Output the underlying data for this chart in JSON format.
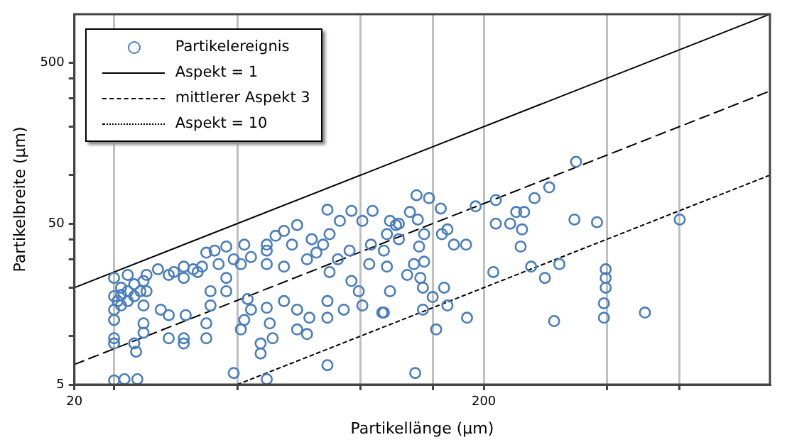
{
  "chart_data": {
    "type": "scatter",
    "xlabel": "Partikellänge (µm)",
    "ylabel": "Partikelbreite (µm)",
    "log": "xy",
    "xlim": [
      20,
      1000
    ],
    "ylim": [
      5,
      1000
    ],
    "xticks": [
      20,
      {
        "value": 25,
        "label": null
      },
      {
        "value": 50,
        "label": null
      },
      {
        "value": 100,
        "label": null
      },
      {
        "value": 150,
        "label": null
      },
      200,
      {
        "value": 400,
        "label": null
      },
      {
        "value": 600,
        "label": null
      }
    ],
    "yticks": [
      5,
      {
        "value": 10,
        "label": null
      },
      {
        "value": 20,
        "label": null
      },
      {
        "value": 30,
        "label": null
      },
      {
        "value": 40,
        "label": null
      },
      50,
      {
        "value": 100,
        "label": null
      },
      {
        "value": 200,
        "label": null
      },
      {
        "value": 300,
        "label": null
      },
      {
        "value": 400,
        "label": null
      },
      500
    ],
    "grid": "x",
    "legend": "top left",
    "marker": "circle",
    "series": [
      {
        "name": "Partikelereignis",
        "color": "#4a7ebb",
        "x": [
          25,
          25,
          25.5,
          26,
          27,
          28,
          25,
          25,
          25,
          25,
          25,
          26.5,
          28.5,
          27,
          29.5,
          30,
          32,
          34,
          30,
          29.5,
          29.5,
          29.5,
          28,
          28.3,
          26,
          27,
          28,
          26,
          29,
          32.5,
          34,
          37.4,
          34,
          37,
          37,
          37,
          37,
          35,
          39,
          41,
          42,
          44,
          47,
          52,
          51,
          47,
          47,
          43,
          43,
          42,
          42,
          40,
          45,
          49,
          54,
          51,
          52,
          54,
          53,
          59,
          65,
          60,
          61,
          57,
          57,
          59,
          49,
          70,
          70,
          74,
          75,
          83,
          83,
          91,
          83,
          59,
          59,
          59,
          65,
          65,
          70,
          68,
          76,
          74,
          81,
          84,
          84,
          94,
          95,
          99,
          101,
          105,
          106,
          113,
          116,
          83,
          95,
          107,
          89,
          101,
          62,
          78,
          88,
          118,
          122,
          124,
          114,
          116,
          118,
          114,
          124,
          130,
          132,
          135,
          138,
          139,
          140,
          142,
          142,
          143,
          143,
          137,
          147,
          150,
          153,
          136,
          157,
          158,
          160,
          163,
          163,
          169,
          181,
          182,
          191,
          211,
          214,
          214,
          232,
          240,
          251,
          248,
          246,
          261,
          266,
          282,
          289,
          297,
          306,
          333,
          336,
          378,
          397,
          397,
          397,
          393,
          393,
          495,
          602
        ],
        "values": [
          23,
          17.7,
          16.5,
          15.5,
          16.5,
          17.7,
          14.6,
          12.6,
          9.7,
          9,
          5.3,
          5.4,
          5.4,
          24,
          22,
          24,
          26,
          24,
          19,
          15.5,
          12,
          10.5,
          9,
          8,
          20,
          19,
          21,
          18,
          19,
          14.6,
          13.5,
          13.5,
          9.7,
          9.7,
          9,
          27,
          23,
          25,
          26,
          27,
          33,
          34,
          36,
          37,
          28,
          23,
          19,
          19,
          15.5,
          12,
          9.7,
          25,
          28,
          30,
          31,
          11,
          12.6,
          14.6,
          17,
          15,
          16.5,
          12,
          9.7,
          9,
          7.8,
          5.4,
          5.9,
          14.6,
          11,
          10.3,
          13,
          16.5,
          13,
          14.6,
          6.6,
          37,
          34,
          28,
          27,
          45,
          49,
          37,
          40,
          30,
          37,
          43,
          25,
          34,
          22,
          19,
          15.5,
          28,
          37,
          14,
          43,
          61,
          60,
          60,
          52,
          52,
          42,
          33,
          30,
          52,
          49,
          40,
          34,
          27,
          19,
          14,
          50,
          24,
          59,
          28,
          53,
          36,
          23,
          20,
          14.6,
          29,
          43,
          75,
          72,
          17.5,
          11,
          5.9,
          62,
          43,
          20,
          46,
          15.5,
          37,
          37,
          13,
          64,
          25,
          70,
          50,
          50,
          59,
          59,
          46,
          36,
          27,
          72,
          23,
          84,
          12.4,
          28,
          53,
          121,
          51,
          26,
          23,
          20,
          16,
          13,
          14,
          53
        ]
      },
      {
        "name": "Aspekt = 1",
        "type": "line",
        "color": "#000000",
        "line_style": "solid",
        "marker": "none",
        "x": [
          20,
          1000
        ],
        "values": [
          20,
          1000
        ]
      },
      {
        "name": "mittlerer Aspekt 3",
        "type": "line",
        "color": "#000000",
        "line_style": "dashed",
        "marker": "none",
        "x": [
          20,
          1000
        ],
        "values": [
          6.67,
          333
        ]
      },
      {
        "name": "Aspekt = 10",
        "type": "line",
        "color": "#000000",
        "line_style": "dotted",
        "marker": "none",
        "x": [
          50,
          1000
        ],
        "values": [
          5,
          100
        ]
      }
    ]
  }
}
